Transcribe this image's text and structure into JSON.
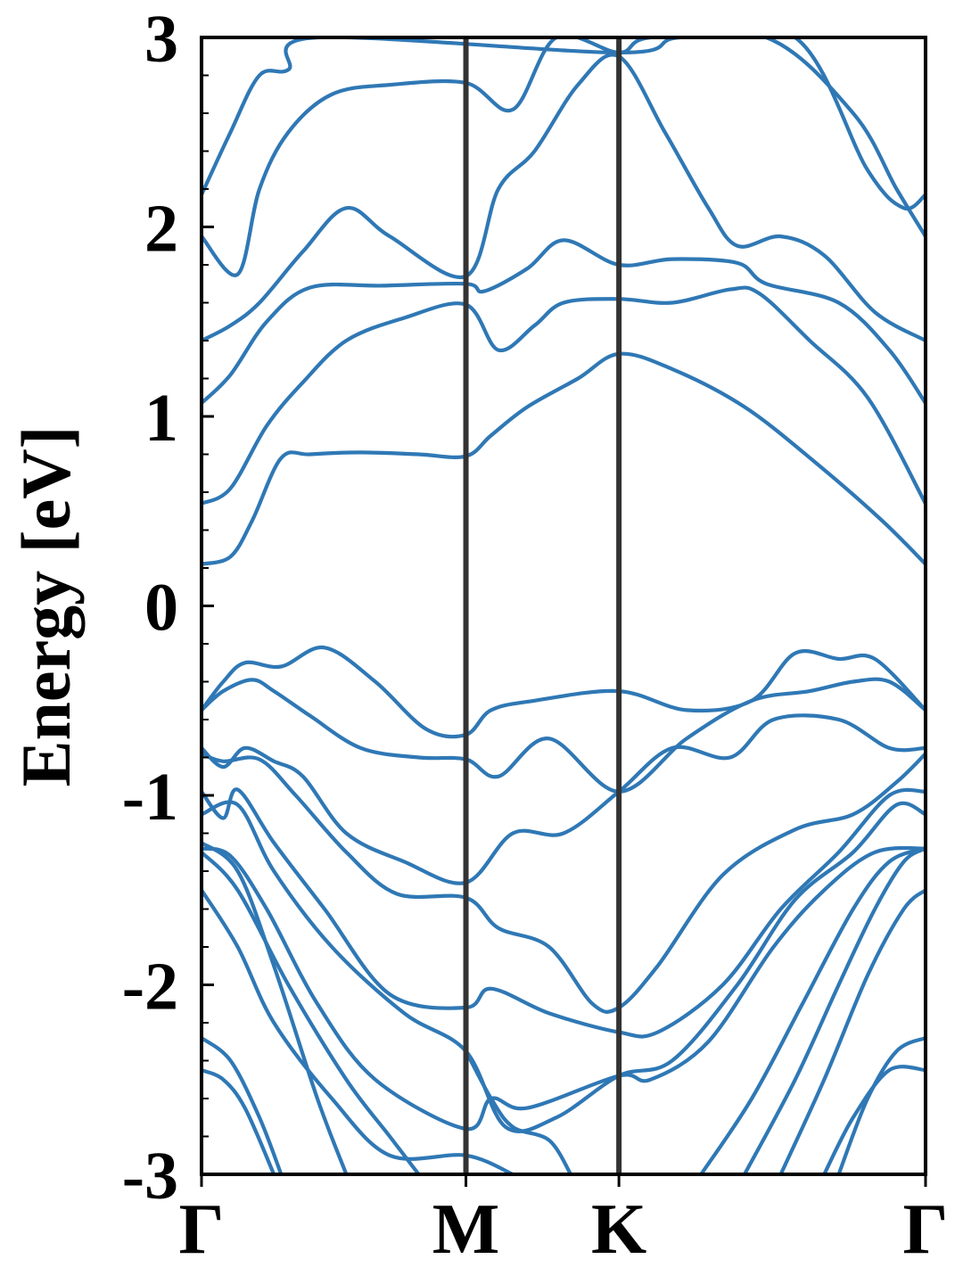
{
  "chart_data": {
    "type": "line",
    "ylabel": "Energy [eV]",
    "ylim": [
      -3,
      3
    ],
    "yticks": [
      "-3",
      "-2",
      "-1",
      "0",
      "1",
      "2",
      "3"
    ],
    "xticks": [
      {
        "label": "Γ",
        "x": 0.0
      },
      {
        "label": "M",
        "x": 0.3652
      },
      {
        "label": "K",
        "x": 0.5765
      },
      {
        "label": "Γ",
        "x": 1.0
      }
    ],
    "xlim": [
      0,
      1
    ],
    "grid": false,
    "colors": {
      "band": "#2f78b5",
      "divider": "#333333",
      "axis": "#000000"
    },
    "series": [
      {
        "values": [
          [
            0,
            0.22
          ],
          [
            0.04,
            0.26
          ],
          [
            0.07,
            0.45
          ],
          [
            0.11,
            0.78
          ],
          [
            0.15,
            0.8
          ],
          [
            0.22,
            0.81
          ],
          [
            0.3,
            0.8
          ],
          [
            0.3652,
            0.79
          ],
          [
            0.4,
            0.9
          ],
          [
            0.45,
            1.05
          ],
          [
            0.52,
            1.2
          ],
          [
            0.5765,
            1.33
          ],
          [
            0.65,
            1.25
          ],
          [
            0.75,
            1.05
          ],
          [
            0.85,
            0.75
          ],
          [
            0.94,
            0.45
          ],
          [
            1.0,
            0.22
          ]
        ]
      },
      {
        "values": [
          [
            0,
            0.54
          ],
          [
            0.04,
            0.62
          ],
          [
            0.09,
            0.95
          ],
          [
            0.14,
            1.18
          ],
          [
            0.2,
            1.4
          ],
          [
            0.28,
            1.52
          ],
          [
            0.3652,
            1.59
          ],
          [
            0.41,
            1.35
          ],
          [
            0.46,
            1.48
          ],
          [
            0.5,
            1.6
          ],
          [
            0.5765,
            1.62
          ],
          [
            0.65,
            1.6
          ],
          [
            0.73,
            1.67
          ],
          [
            0.77,
            1.65
          ],
          [
            0.84,
            1.4
          ],
          [
            0.92,
            1.1
          ],
          [
            1.0,
            0.54
          ]
        ]
      },
      {
        "values": [
          [
            0,
            1.07
          ],
          [
            0.04,
            1.22
          ],
          [
            0.09,
            1.5
          ],
          [
            0.15,
            1.68
          ],
          [
            0.25,
            1.69
          ],
          [
            0.3652,
            1.7
          ],
          [
            0.39,
            1.66
          ],
          [
            0.45,
            1.78
          ],
          [
            0.5,
            1.93
          ],
          [
            0.5765,
            1.8
          ],
          [
            0.65,
            1.83
          ],
          [
            0.74,
            1.81
          ],
          [
            0.78,
            1.7
          ],
          [
            0.88,
            1.6
          ],
          [
            0.95,
            1.35
          ],
          [
            1.0,
            1.07
          ]
        ]
      },
      {
        "values": [
          [
            0,
            1.4
          ],
          [
            0.04,
            1.48
          ],
          [
            0.08,
            1.6
          ],
          [
            0.14,
            1.87
          ],
          [
            0.2,
            2.1
          ],
          [
            0.26,
            1.95
          ],
          [
            0.3652,
            1.74
          ],
          [
            0.41,
            2.2
          ],
          [
            0.46,
            2.4
          ],
          [
            0.52,
            2.75
          ],
          [
            0.5765,
            2.9
          ],
          [
            0.64,
            2.5
          ],
          [
            0.7,
            2.1
          ],
          [
            0.74,
            1.9
          ],
          [
            0.8,
            1.95
          ],
          [
            0.86,
            1.85
          ],
          [
            0.93,
            1.55
          ],
          [
            1.0,
            1.4
          ]
        ]
      },
      {
        "values": [
          [
            0,
            1.95
          ],
          [
            0.05,
            1.75
          ],
          [
            0.08,
            2.2
          ],
          [
            0.12,
            2.5
          ],
          [
            0.18,
            2.7
          ],
          [
            0.26,
            2.75
          ],
          [
            0.3652,
            2.76
          ],
          [
            0.43,
            2.62
          ],
          [
            0.49,
            3.0
          ],
          [
            0.5765,
            2.92
          ],
          [
            0.62,
            3.0
          ],
          [
            0.78,
            3.0
          ],
          [
            0.9,
            2.6
          ],
          [
            0.96,
            2.2
          ],
          [
            1.0,
            1.95
          ]
        ]
      },
      {
        "values": [
          [
            0,
            2.17
          ],
          [
            0.04,
            2.5
          ],
          [
            0.08,
            2.8
          ],
          [
            0.12,
            2.83
          ],
          [
            0.16,
            3.0
          ],
          [
            0.5765,
            2.92
          ],
          [
            0.66,
            3.0
          ],
          [
            0.82,
            3.0
          ],
          [
            0.92,
            2.3
          ],
          [
            0.97,
            2.1
          ],
          [
            1.0,
            2.17
          ]
        ]
      },
      {
        "values": [
          [
            0,
            -0.55
          ],
          [
            0.03,
            -0.4
          ],
          [
            0.06,
            -0.3
          ],
          [
            0.11,
            -0.32
          ],
          [
            0.17,
            -0.22
          ],
          [
            0.24,
            -0.4
          ],
          [
            0.31,
            -0.65
          ],
          [
            0.3652,
            -0.68
          ],
          [
            0.4,
            -0.55
          ],
          [
            0.46,
            -0.5
          ],
          [
            0.5765,
            -0.45
          ],
          [
            0.67,
            -0.55
          ],
          [
            0.76,
            -0.5
          ],
          [
            0.82,
            -0.25
          ],
          [
            0.88,
            -0.28
          ],
          [
            0.93,
            -0.28
          ],
          [
            1.0,
            -0.55
          ]
        ]
      },
      {
        "values": [
          [
            0,
            -0.55
          ],
          [
            0.03,
            -0.45
          ],
          [
            0.07,
            -0.39
          ],
          [
            0.1,
            -0.45
          ],
          [
            0.15,
            -0.58
          ],
          [
            0.22,
            -0.75
          ],
          [
            0.3,
            -0.8
          ],
          [
            0.3652,
            -0.81
          ],
          [
            0.41,
            -0.9
          ],
          [
            0.48,
            -0.7
          ],
          [
            0.5765,
            -0.98
          ],
          [
            0.67,
            -0.7
          ],
          [
            0.76,
            -0.5
          ],
          [
            0.84,
            -0.45
          ],
          [
            0.9,
            -0.4
          ],
          [
            0.95,
            -0.4
          ],
          [
            1.0,
            -0.55
          ]
        ]
      },
      {
        "values": [
          [
            0,
            -0.75
          ],
          [
            0.03,
            -0.85
          ],
          [
            0.06,
            -0.75
          ],
          [
            0.1,
            -0.82
          ],
          [
            0.14,
            -0.9
          ],
          [
            0.2,
            -1.2
          ],
          [
            0.28,
            -1.35
          ],
          [
            0.3652,
            -1.46
          ],
          [
            0.43,
            -1.2
          ],
          [
            0.5,
            -1.2
          ],
          [
            0.5765,
            -0.98
          ],
          [
            0.65,
            -0.75
          ],
          [
            0.73,
            -0.8
          ],
          [
            0.79,
            -0.6
          ],
          [
            0.88,
            -0.6
          ],
          [
            0.95,
            -0.75
          ],
          [
            1.0,
            -0.75
          ]
        ]
      },
      {
        "values": [
          [
            0,
            -0.78
          ],
          [
            0.03,
            -0.82
          ],
          [
            0.08,
            -0.81
          ],
          [
            0.13,
            -1.0
          ],
          [
            0.2,
            -1.3
          ],
          [
            0.27,
            -1.52
          ],
          [
            0.3652,
            -1.54
          ],
          [
            0.41,
            -1.7
          ],
          [
            0.48,
            -1.8
          ],
          [
            0.54,
            -2.1
          ],
          [
            0.5765,
            -2.12
          ],
          [
            0.63,
            -1.9
          ],
          [
            0.72,
            -1.42
          ],
          [
            0.82,
            -1.18
          ],
          [
            0.9,
            -1.1
          ],
          [
            0.96,
            -0.93
          ],
          [
            1.0,
            -0.78
          ]
        ]
      },
      {
        "values": [
          [
            0,
            -0.98
          ],
          [
            0.03,
            -1.12
          ],
          [
            0.05,
            -0.97
          ],
          [
            0.1,
            -1.25
          ],
          [
            0.17,
            -1.6
          ],
          [
            0.26,
            -2.05
          ],
          [
            0.3652,
            -2.12
          ],
          [
            0.4,
            -2.02
          ],
          [
            0.48,
            -2.15
          ],
          [
            0.5765,
            -2.25
          ],
          [
            0.63,
            -2.25
          ],
          [
            0.72,
            -2.0
          ],
          [
            0.8,
            -1.6
          ],
          [
            0.88,
            -1.3
          ],
          [
            0.95,
            -1.0
          ],
          [
            1.0,
            -0.98
          ]
        ]
      },
      {
        "values": [
          [
            0,
            -1.1
          ],
          [
            0.05,
            -1.05
          ],
          [
            0.1,
            -1.4
          ],
          [
            0.18,
            -1.8
          ],
          [
            0.28,
            -2.15
          ],
          [
            0.3652,
            -2.35
          ],
          [
            0.42,
            -2.75
          ],
          [
            0.49,
            -2.7
          ],
          [
            0.5765,
            -2.48
          ],
          [
            0.65,
            -2.4
          ],
          [
            0.74,
            -2.0
          ],
          [
            0.82,
            -1.55
          ],
          [
            0.9,
            -1.3
          ],
          [
            0.96,
            -1.05
          ],
          [
            1.0,
            -1.1
          ]
        ]
      },
      {
        "values": [
          [
            0,
            -1.28
          ],
          [
            0.04,
            -1.32
          ],
          [
            0.09,
            -1.6
          ],
          [
            0.16,
            -2.1
          ],
          [
            0.24,
            -2.5
          ],
          [
            0.3652,
            -2.76
          ],
          [
            0.4,
            -2.6
          ],
          [
            0.45,
            -2.65
          ],
          [
            0.5765,
            -2.48
          ],
          [
            0.62,
            -2.5
          ],
          [
            0.7,
            -2.3
          ],
          [
            0.79,
            -1.8
          ],
          [
            0.86,
            -1.5
          ],
          [
            0.93,
            -1.3
          ],
          [
            1.0,
            -1.28
          ]
        ]
      },
      {
        "values": [
          [
            0,
            -1.5
          ],
          [
            0.05,
            -1.8
          ],
          [
            0.1,
            -2.2
          ],
          [
            0.18,
            -2.6
          ],
          [
            0.26,
            -2.9
          ],
          [
            0.3652,
            -2.9
          ],
          [
            0.43,
            -3.0
          ]
        ]
      },
      {
        "values": [
          [
            0,
            -1.3
          ],
          [
            0.05,
            -1.5
          ],
          [
            0.12,
            -2.0
          ],
          [
            0.2,
            -2.5
          ],
          [
            0.26,
            -2.8
          ],
          [
            0.3,
            -3.0
          ]
        ]
      },
      {
        "values": [
          [
            0,
            -1.25
          ],
          [
            0.05,
            -1.4
          ],
          [
            0.1,
            -1.9
          ],
          [
            0.16,
            -2.6
          ],
          [
            0.2,
            -3.0
          ]
        ]
      },
      {
        "values": [
          [
            0,
            -2.28
          ],
          [
            0.04,
            -2.4
          ],
          [
            0.08,
            -2.7
          ],
          [
            0.11,
            -3.0
          ]
        ]
      },
      {
        "values": [
          [
            0,
            -2.45
          ],
          [
            0.03,
            -2.5
          ],
          [
            0.06,
            -2.65
          ],
          [
            0.1,
            -3.0
          ]
        ]
      },
      {
        "values": [
          [
            0.3652,
            -2.35
          ],
          [
            0.4,
            -2.6
          ],
          [
            0.43,
            -2.75
          ],
          [
            0.48,
            -2.82
          ],
          [
            0.51,
            -3.0
          ]
        ]
      },
      {
        "values": [
          [
            0.69,
            -3.0
          ],
          [
            0.76,
            -2.6
          ],
          [
            0.83,
            -2.1
          ],
          [
            0.9,
            -1.6
          ],
          [
            0.95,
            -1.35
          ],
          [
            1.0,
            -1.28
          ]
        ]
      },
      {
        "values": [
          [
            0.75,
            -3.0
          ],
          [
            0.82,
            -2.5
          ],
          [
            0.88,
            -2.0
          ],
          [
            0.93,
            -1.6
          ],
          [
            0.97,
            -1.35
          ],
          [
            1.0,
            -1.28
          ]
        ]
      },
      {
        "values": [
          [
            0.8,
            -3.0
          ],
          [
            0.86,
            -2.5
          ],
          [
            0.92,
            -1.95
          ],
          [
            0.97,
            -1.6
          ],
          [
            1.0,
            -1.5
          ]
        ]
      },
      {
        "values": [
          [
            0.86,
            -3.0
          ],
          [
            0.9,
            -2.7
          ],
          [
            0.95,
            -2.45
          ],
          [
            1.0,
            -2.45
          ]
        ]
      },
      {
        "values": [
          [
            0.88,
            -3.0
          ],
          [
            0.92,
            -2.6
          ],
          [
            0.96,
            -2.35
          ],
          [
            1.0,
            -2.28
          ]
        ]
      }
    ]
  }
}
